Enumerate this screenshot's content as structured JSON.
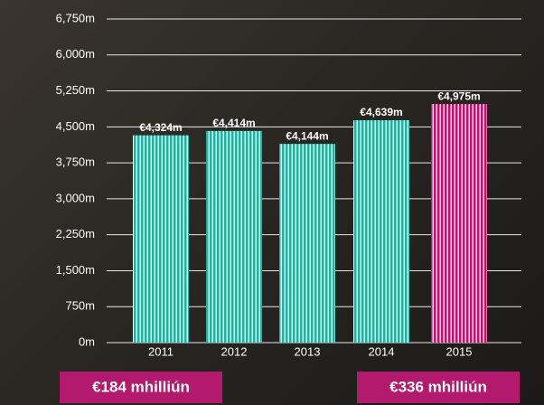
{
  "chart_data": {
    "type": "bar",
    "categories": [
      "2011",
      "2012",
      "2013",
      "2014",
      "2015"
    ],
    "values": [
      4324,
      4414,
      4144,
      4639,
      4975
    ],
    "value_labels": [
      "€4,324m",
      "€4,414m",
      "€4,144m",
      "€4,639m",
      "€4,975m"
    ],
    "colors": [
      "#1fb3a2",
      "#1fb3a2",
      "#1fb3a2",
      "#1fb3a2",
      "#c4106c"
    ],
    "ylim": [
      0,
      6750
    ],
    "yticks": [
      {
        "value": 0,
        "label": "0m"
      },
      {
        "value": 750,
        "label": "750m"
      },
      {
        "value": 1500,
        "label": "1,500m"
      },
      {
        "value": 2250,
        "label": "2,250m"
      },
      {
        "value": 3000,
        "label": "3,000m"
      },
      {
        "value": 3750,
        "label": "3,750m"
      },
      {
        "value": 4500,
        "label": "4,500m"
      },
      {
        "value": 5250,
        "label": "5,250m"
      },
      {
        "value": 6000,
        "label": "6,000m"
      },
      {
        "value": 6750,
        "label": "6,750m"
      }
    ],
    "grid": true,
    "annotations": [
      "€184 mhilliún",
      "€336 mhilliún"
    ]
  }
}
